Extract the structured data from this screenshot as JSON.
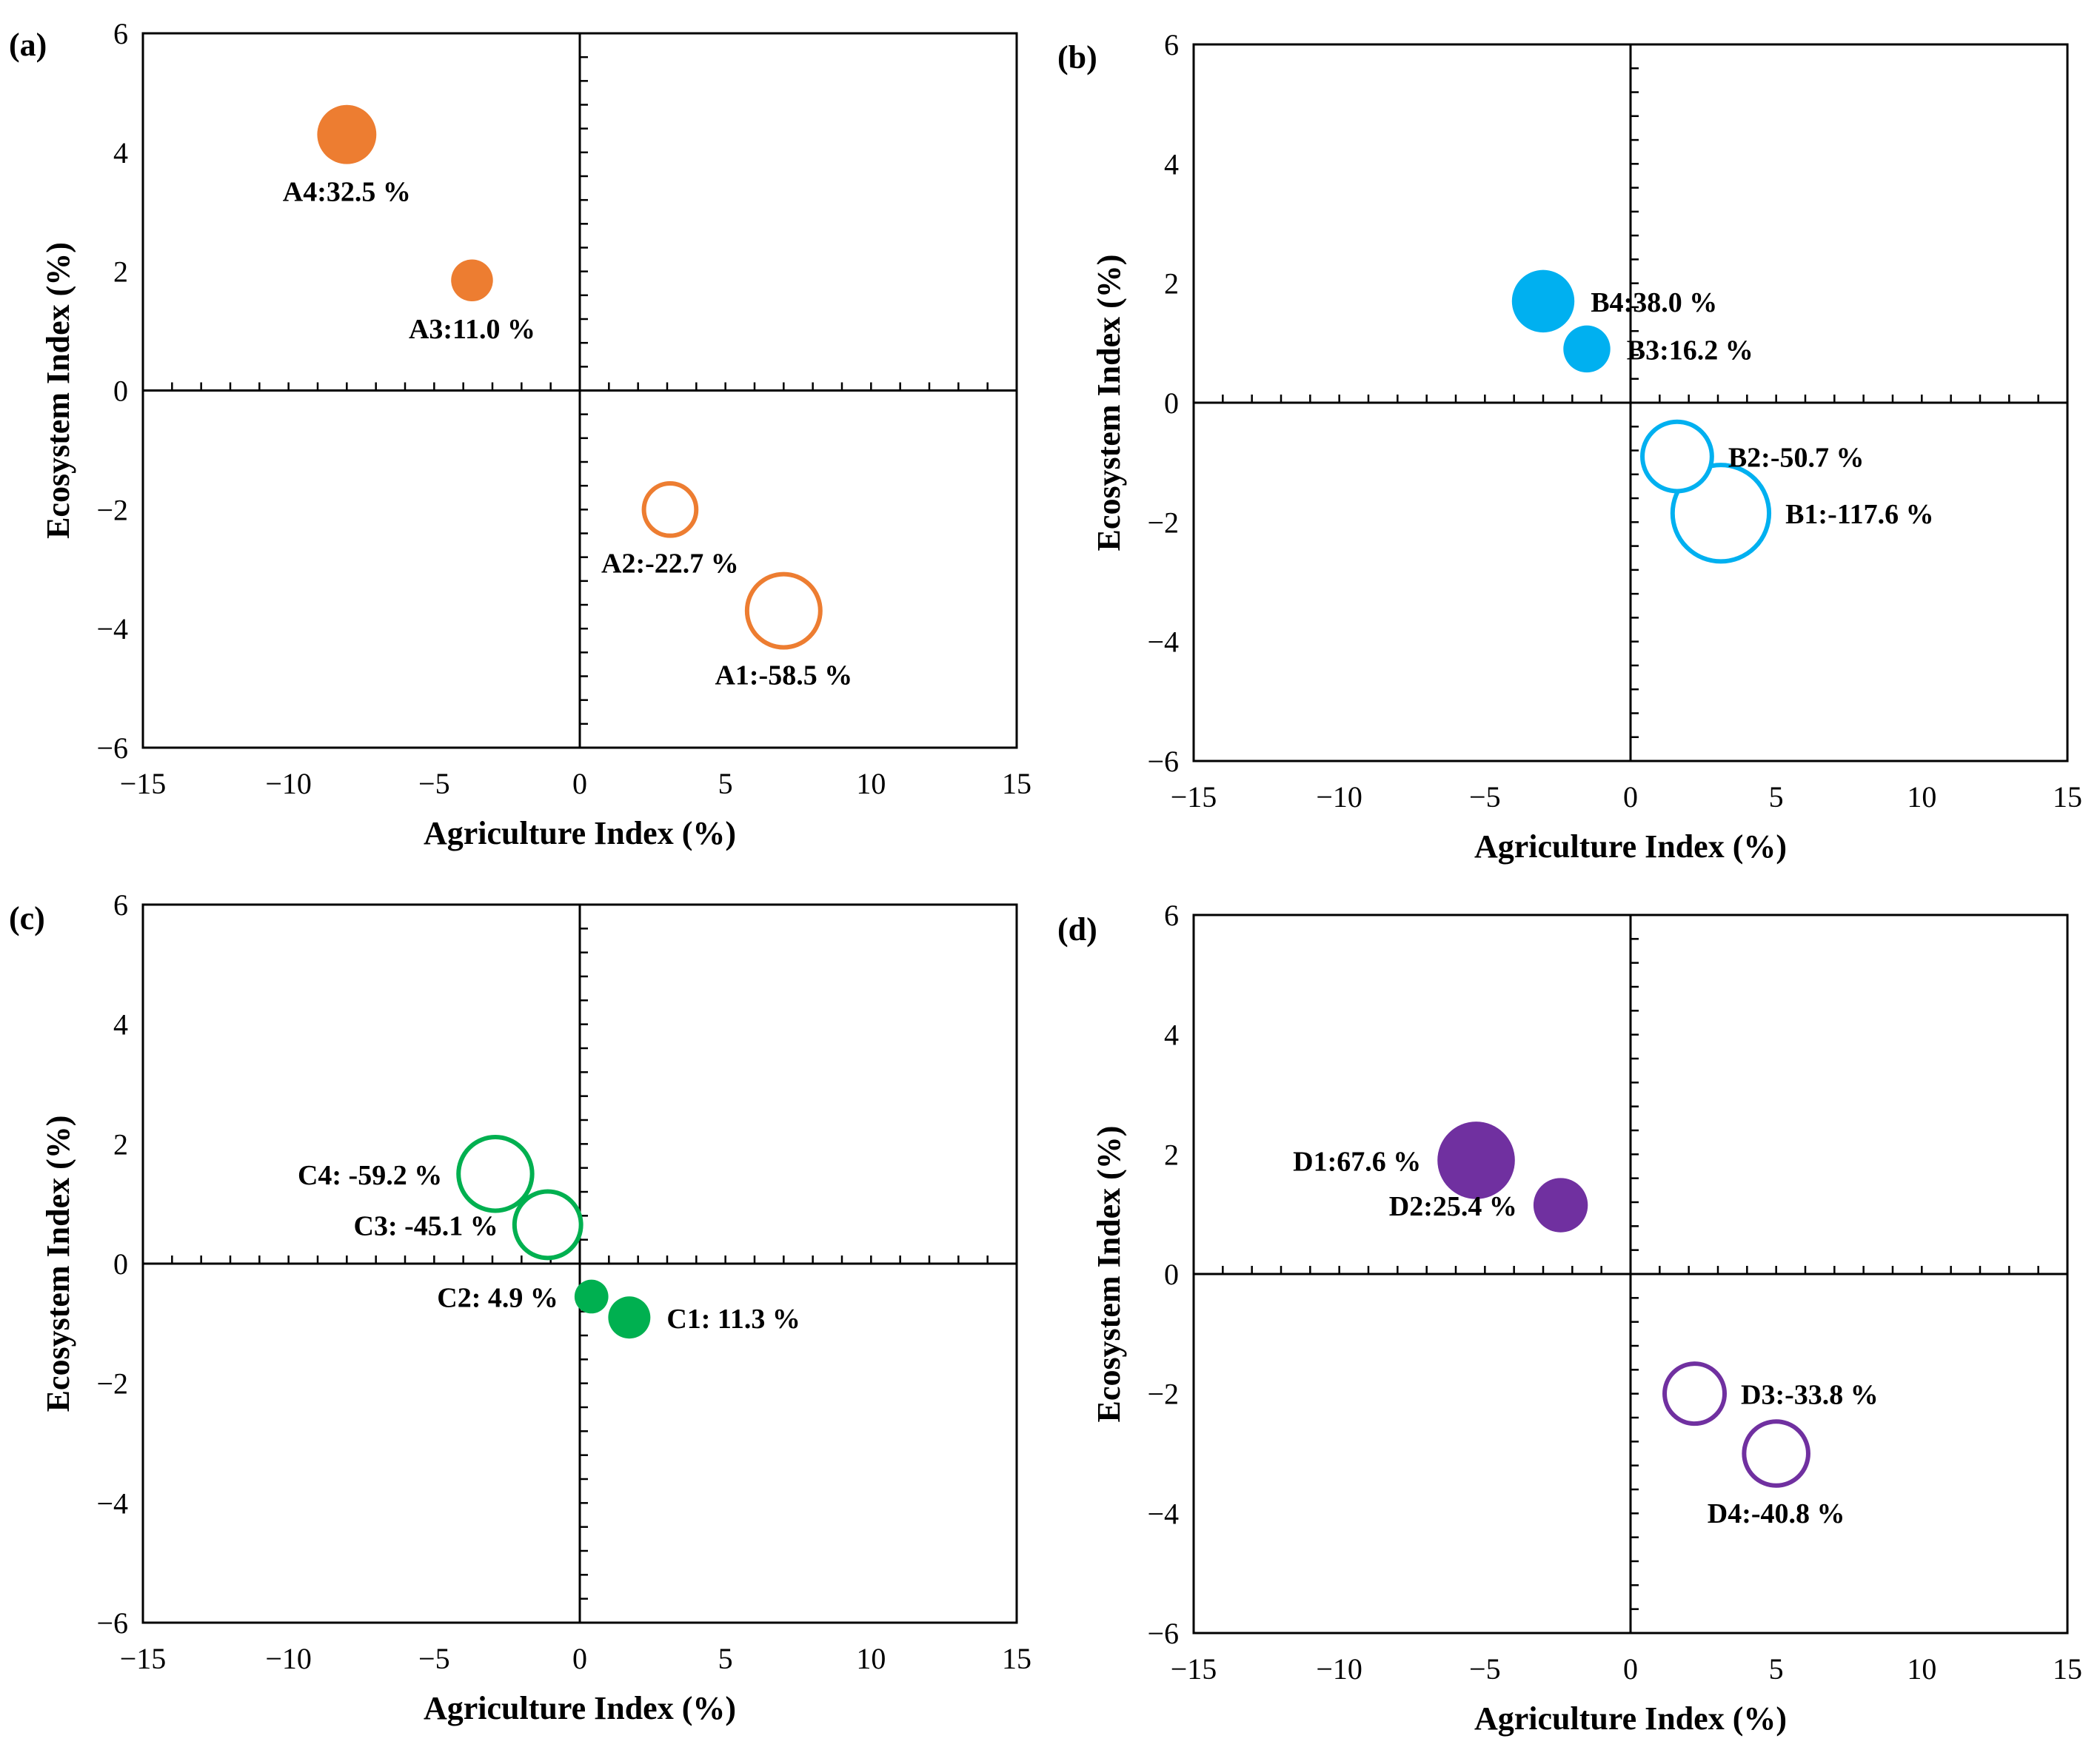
{
  "figure": {
    "description_panels": [
      "a",
      "b",
      "c",
      "d"
    ]
  },
  "chart_data": [
    {
      "type": "scatter",
      "panel": "(a)",
      "title": "",
      "xlabel": "Agriculture Index (%)",
      "ylabel": "Ecosystem Index (%)",
      "xlim": [
        -15,
        15
      ],
      "ylim": [
        -6,
        6
      ],
      "xticks": [
        -15,
        -10,
        -5,
        0,
        5,
        10,
        15
      ],
      "yticks": [
        -6,
        -4,
        -2,
        0,
        2,
        4,
        6
      ],
      "xtick_labels": [
        "−15",
        "−10",
        "−5",
        "0",
        "5",
        "10",
        "15"
      ],
      "ytick_labels": [
        "−6",
        "−4",
        "−2",
        "0",
        "2",
        "4",
        "6"
      ],
      "color": "#ED7D31",
      "points": [
        {
          "id": "A1",
          "x": 7.0,
          "y": -3.7,
          "value": -58.5,
          "filled": false,
          "label": "A1:-58.5 %",
          "label_pos": "below"
        },
        {
          "id": "A2",
          "x": 3.1,
          "y": -2.0,
          "value": -22.7,
          "filled": false,
          "label": "A2:-22.7 %",
          "label_pos": "below"
        },
        {
          "id": "A3",
          "x": -3.7,
          "y": 1.85,
          "value": 11.0,
          "filled": true,
          "label": "A3:11.0 %",
          "label_pos": "below"
        },
        {
          "id": "A4",
          "x": -8.0,
          "y": 4.3,
          "value": 32.5,
          "filled": true,
          "label": "A4:32.5 %",
          "label_pos": "below"
        }
      ]
    },
    {
      "type": "scatter",
      "panel": "(b)",
      "title": "",
      "xlabel": "Agriculture Index (%)",
      "ylabel": "Ecosystem Index (%)",
      "xlim": [
        -15,
        15
      ],
      "ylim": [
        -6,
        6
      ],
      "xticks": [
        -15,
        -10,
        -5,
        0,
        5,
        10,
        15
      ],
      "yticks": [
        -6,
        -4,
        -2,
        0,
        2,
        4,
        6
      ],
      "xtick_labels": [
        "−15",
        "−10",
        "−5",
        "0",
        "5",
        "10",
        "15"
      ],
      "ytick_labels": [
        "−6",
        "−4",
        "−2",
        "0",
        "2",
        "4",
        "6"
      ],
      "color": "#00B0F0",
      "points": [
        {
          "id": "B1",
          "x": 3.1,
          "y": -1.85,
          "value": -117.6,
          "filled": false,
          "label": "B1:-117.6 %",
          "label_pos": "right"
        },
        {
          "id": "B2",
          "x": 1.6,
          "y": -0.9,
          "value": -50.7,
          "filled": false,
          "label": "B2:-50.7 %",
          "label_pos": "right"
        },
        {
          "id": "B3",
          "x": -1.5,
          "y": 0.9,
          "value": 16.2,
          "filled": true,
          "label": "B3:16.2 %",
          "label_pos": "right"
        },
        {
          "id": "B4",
          "x": -3.0,
          "y": 1.7,
          "value": 38.0,
          "filled": true,
          "label": "B4:38.0 %",
          "label_pos": "right"
        }
      ]
    },
    {
      "type": "scatter",
      "panel": "(c)",
      "title": "",
      "xlabel": "Agriculture Index (%)",
      "ylabel": "Ecosystem Index (%)",
      "xlim": [
        -15,
        15
      ],
      "ylim": [
        -6,
        6
      ],
      "xticks": [
        -15,
        -10,
        -5,
        0,
        5,
        10,
        15
      ],
      "yticks": [
        -6,
        -4,
        -2,
        0,
        2,
        4,
        6
      ],
      "xtick_labels": [
        "−15",
        "−10",
        "−5",
        "0",
        "5",
        "10",
        "15"
      ],
      "ytick_labels": [
        "−6",
        "−4",
        "−2",
        "0",
        "2",
        "4",
        "6"
      ],
      "color": "#00B050",
      "points": [
        {
          "id": "C1",
          "x": 1.7,
          "y": -0.9,
          "value": 11.3,
          "filled": true,
          "label": "C1: 11.3 %",
          "label_pos": "right"
        },
        {
          "id": "C2",
          "x": 0.4,
          "y": -0.55,
          "value": 4.9,
          "filled": true,
          "label": "C2: 4.9 %",
          "label_pos": "left"
        },
        {
          "id": "C3",
          "x": -1.1,
          "y": 0.65,
          "value": -45.1,
          "filled": false,
          "label": "C3: -45.1 %",
          "label_pos": "left"
        },
        {
          "id": "C4",
          "x": -2.9,
          "y": 1.5,
          "value": -59.2,
          "filled": false,
          "label": "C4: -59.2 %",
          "label_pos": "left"
        }
      ]
    },
    {
      "type": "scatter",
      "panel": "(d)",
      "title": "",
      "xlabel": "Agriculture Index (%)",
      "ylabel": "Ecosystem Index (%)",
      "xlim": [
        -15,
        15
      ],
      "ylim": [
        -6,
        6
      ],
      "xticks": [
        -15,
        -10,
        -5,
        0,
        5,
        10,
        15
      ],
      "yticks": [
        -6,
        -4,
        -2,
        0,
        2,
        4,
        6
      ],
      "xtick_labels": [
        "−15",
        "−10",
        "−5",
        "0",
        "5",
        "10",
        "15"
      ],
      "ytick_labels": [
        "−6",
        "−4",
        "−2",
        "0",
        "2",
        "4",
        "6"
      ],
      "color": "#7030A0",
      "points": [
        {
          "id": "D1",
          "x": -5.3,
          "y": 1.9,
          "value": 67.6,
          "filled": true,
          "label": "D1:67.6 %",
          "label_pos": "left"
        },
        {
          "id": "D2",
          "x": -2.4,
          "y": 1.15,
          "value": 25.4,
          "filled": true,
          "label": "D2:25.4 %",
          "label_pos": "left"
        },
        {
          "id": "D3",
          "x": 2.2,
          "y": -2.0,
          "value": -33.8,
          "filled": false,
          "label": "D3:-33.8 %",
          "label_pos": "right"
        },
        {
          "id": "D4",
          "x": 5.0,
          "y": -3.0,
          "value": -40.8,
          "filled": false,
          "label": "D4:-40.8 %",
          "label_pos": "below"
        }
      ]
    }
  ]
}
